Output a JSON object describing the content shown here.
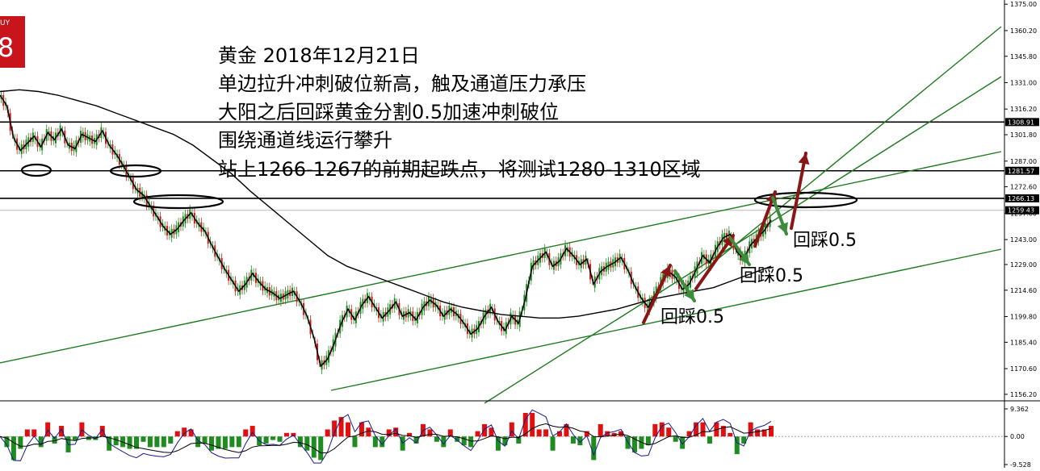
{
  "buy_badge": {
    "label": "UY",
    "value": "8"
  },
  "annotations": [
    "黄金 2018年12月21日",
    "单边拉升冲刺破位新高，触及通道压力承压",
    "大阳之后回踩黄金分割0.5加速冲刺破位",
    "围绕通道线运行攀升",
    "站上1266-1267的前期起跌点，将测试1280-1310区域"
  ],
  "pullback_labels": [
    "回踩0.5",
    "回踩0.5",
    "回踩0.5"
  ],
  "colors": {
    "channel": "#1e7a1e",
    "arrow_up": "#8b1515",
    "arrow_down": "#3c8c3c",
    "bull": "#1f8c1f",
    "bear": "#c81e1e"
  },
  "chart_data": {
    "type": "line",
    "title": "",
    "ylim": [
      1153,
      1376
    ],
    "y_ticks": [
      "1375.00",
      "1360.20",
      "1345.80",
      "1331.00",
      "1316.20",
      "1301.80",
      "1287.00",
      "1272.60",
      "1257.80",
      "1243.00",
      "1229.00",
      "1214.60",
      "1199.80",
      "1185.40",
      "1170.60",
      "1156.20"
    ],
    "y_tick_values": [
      1375.0,
      1360.2,
      1345.8,
      1331.0,
      1316.2,
      1301.8,
      1287.0,
      1272.6,
      1257.8,
      1243.0,
      1229.0,
      1214.6,
      1199.8,
      1185.4,
      1170.6,
      1156.2
    ],
    "horizontal_levels": [
      {
        "value": 1308.91,
        "label": "1308.91"
      },
      {
        "value": 1281.57,
        "label": "1281.57"
      },
      {
        "value": 1266.13,
        "label": "1266.13"
      },
      {
        "value": 1259.43,
        "label": "1259.43",
        "style": "thin"
      }
    ],
    "price": [
      1324,
      1318,
      1300,
      1293,
      1297,
      1301,
      1295,
      1303,
      1299,
      1305,
      1296,
      1294,
      1302,
      1300,
      1298,
      1304,
      1296,
      1291,
      1285,
      1278,
      1271,
      1268,
      1262,
      1256,
      1250,
      1246,
      1249,
      1254,
      1258,
      1252,
      1248,
      1240,
      1233,
      1226,
      1220,
      1214,
      1218,
      1224,
      1219,
      1215,
      1213,
      1210,
      1212,
      1214,
      1208,
      1200,
      1188,
      1172,
      1176,
      1185,
      1196,
      1204,
      1198,
      1206,
      1211,
      1205,
      1199,
      1203,
      1208,
      1200,
      1202,
      1198,
      1205,
      1209,
      1206,
      1200,
      1204,
      1201,
      1196,
      1190,
      1193,
      1200,
      1205,
      1197,
      1192,
      1200,
      1196,
      1210,
      1228,
      1232,
      1236,
      1228,
      1231,
      1238,
      1234,
      1229,
      1232,
      1218,
      1225,
      1228,
      1230,
      1233,
      1226,
      1217,
      1210,
      1205,
      1212,
      1220,
      1225,
      1222,
      1215,
      1218,
      1226,
      1234,
      1230,
      1238,
      1244,
      1246,
      1236,
      1232,
      1240,
      1244,
      1248,
      1254
    ],
    "moving_average": [
      1326,
      1327,
      1326,
      1324,
      1321,
      1318,
      1314,
      1310,
      1306,
      1302,
      1296,
      1288,
      1280,
      1270,
      1261,
      1252,
      1243,
      1234,
      1228,
      1224,
      1220,
      1216,
      1212,
      1208,
      1205,
      1203,
      1201,
      1200,
      1199,
      1199,
      1200,
      1202,
      1204,
      1207,
      1210,
      1212,
      1214,
      1216,
      1220,
      1224,
      1228
    ],
    "oscillator": {
      "ylim": [
        -9.528,
        9.362
      ],
      "y_ticks": [
        "9.362",
        "0.00",
        "-9.528"
      ],
      "y_tick_values": [
        9.362,
        0,
        -9.528
      ]
    }
  }
}
